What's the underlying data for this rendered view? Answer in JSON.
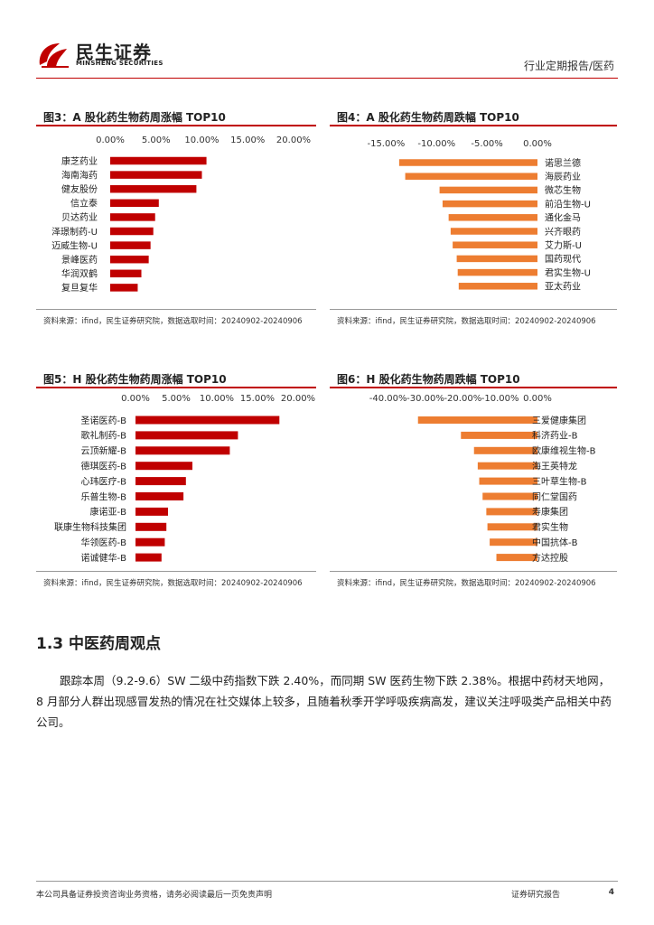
{
  "header": {
    "logo_cn": "民生证券",
    "logo_en": "MINSHENG SECURITIES",
    "report_type": "行业定期报告/医药",
    "brand_color": "#c00000"
  },
  "chart_data": [
    {
      "id": "fig3",
      "type": "bar",
      "orientation": "horizontal",
      "title": "图3：A 股化药生物药周涨幅 TOP10",
      "categories": [
        "康芝药业",
        "海南海药",
        "健友股份",
        "信立泰",
        "贝达药业",
        "泽璟制药-U",
        "迈威生物-U",
        "景峰医药",
        "华润双鹤",
        "复旦复华"
      ],
      "values": [
        10.5,
        10.0,
        9.4,
        5.3,
        4.9,
        4.7,
        4.4,
        4.2,
        3.4,
        3.0
      ],
      "xlim": [
        0,
        20
      ],
      "ticks": [
        "0.00%",
        "5.00%",
        "10.00%",
        "15.00%",
        "20.00%"
      ],
      "tick_values": [
        0,
        5,
        10,
        15,
        20
      ],
      "axis_position": "top",
      "label_position": "left",
      "color": "#c00000",
      "source": "资料来源：ifind，民生证券研究院，数据选取时间：20240902-20240906"
    },
    {
      "id": "fig4",
      "type": "bar",
      "orientation": "horizontal",
      "title": "图4：A 股化药生物药周跌幅 TOP10",
      "categories": [
        "诺思兰德",
        "海辰药业",
        "微芯生物",
        "前沿生物-U",
        "通化金马",
        "兴齐眼药",
        "艾力斯-U",
        "国药现代",
        "君实生物-U",
        "亚太药业"
      ],
      "values": [
        -13.7,
        -13.1,
        -9.7,
        -9.4,
        -8.8,
        -8.6,
        -8.4,
        -8.0,
        -7.9,
        -7.8
      ],
      "xlim": [
        -17,
        0
      ],
      "ticks": [
        "-15.00%",
        "-10.00%",
        "-5.00%",
        "0.00%"
      ],
      "tick_values": [
        -15,
        -10,
        -5,
        0
      ],
      "axis_position": "top",
      "label_position": "right",
      "color": "#ed7d31",
      "source": "资料来源：ifind，民生证券研究院，数据选取时间：20240902-20240906"
    },
    {
      "id": "fig5",
      "type": "bar",
      "orientation": "horizontal",
      "title": "图5：H 股化药生物药周涨幅 TOP10",
      "categories": [
        "圣诺医药-B",
        "歌礼制药-B",
        "云顶新耀-B",
        "德琪医药-B",
        "心玮医疗-B",
        "乐普生物-B",
        "康诺亚-B",
        "联康生物科技集团",
        "华领医药-B",
        "诺诚健华-B"
      ],
      "values": [
        17.7,
        12.6,
        11.6,
        7.0,
        6.2,
        5.9,
        4.0,
        3.8,
        3.6,
        3.2
      ],
      "xlim": [
        0,
        20
      ],
      "ticks": [
        "0.00%",
        "5.00%",
        "10.00%",
        "15.00%",
        "20.00%"
      ],
      "tick_values": [
        0,
        5,
        10,
        15,
        20
      ],
      "axis_position": "top",
      "label_position": "left",
      "color": "#c00000",
      "source": "资料来源：ifind，民生证券研究院，数据选取时间：20240902-20240906"
    },
    {
      "id": "fig6",
      "type": "bar",
      "orientation": "horizontal",
      "title": "图6：H 股化药生物药周跌幅 TOP10",
      "categories": [
        "三爱健康集团",
        "科济药业-B",
        "欧康维视生物-B",
        "海王英特龙",
        "三叶草生物-B",
        "同仁堂国药",
        "寿康集团",
        "君实生物",
        "中国抗体-B",
        "方达控股"
      ],
      "values": [
        -32.0,
        -20.5,
        -17.0,
        -16.0,
        -15.6,
        -14.7,
        -13.7,
        -13.4,
        -12.8,
        -11.0
      ],
      "xlim": [
        -45,
        0
      ],
      "ticks": [
        "-40.00%",
        "-30.00%",
        "-20.00%",
        "-10.00%",
        "0.00%"
      ],
      "tick_values": [
        -40,
        -30,
        -20,
        -10,
        0
      ],
      "axis_position": "top",
      "label_position": "right",
      "color": "#ed7d31",
      "source": "资料来源：ifind，民生证券研究院，数据选取时间：20240902-20240906"
    }
  ],
  "section": {
    "title": "1.3 中医药周观点",
    "paragraph": "跟踪本周（9.2-9.6）SW 二级中药指数下跌 2.40%，而同期 SW 医药生物下跌 2.38%。根据中药材天地网，8 月部分人群出现感冒发热的情况在社交媒体上较多，且随着秋季开学呼吸疾病高发，建议关注呼吸类产品相关中药公司。"
  },
  "footer": {
    "disclaimer": "本公司具备证券投资咨询业务资格，请务必阅读最后一页免责声明",
    "report_label": "证券研究报告",
    "page": "4"
  }
}
